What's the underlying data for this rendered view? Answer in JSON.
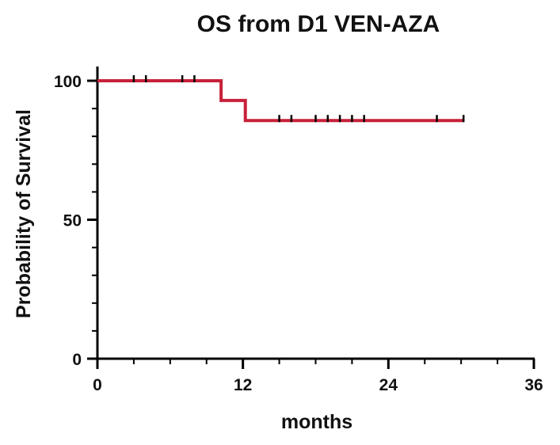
{
  "chart_data": {
    "type": "line",
    "subtype": "kaplan-meier",
    "title": "OS from D1 VEN-AZA",
    "xlabel": "months",
    "ylabel": "Probability of Survival",
    "xlim": [
      0,
      36
    ],
    "ylim": [
      0,
      100
    ],
    "x_ticks": [
      0,
      12,
      24,
      36
    ],
    "x_tick_labels": [
      "0",
      "12",
      "24",
      "36"
    ],
    "x_minor_step": 3,
    "y_ticks": [
      0,
      50,
      100
    ],
    "y_tick_labels": [
      "0",
      "50",
      "100"
    ],
    "y_minor_step": 10,
    "grid": false,
    "series": [
      {
        "color": "#c8213a",
        "steps": [
          {
            "x": 0,
            "y": 100
          },
          {
            "x": 10.2,
            "y": 92.9
          },
          {
            "x": 12.2,
            "y": 85.7
          }
        ],
        "x_end": 30.2,
        "censored": [
          {
            "x": 3.0,
            "y": 100
          },
          {
            "x": 4.0,
            "y": 100
          },
          {
            "x": 7.0,
            "y": 100
          },
          {
            "x": 8.0,
            "y": 100
          },
          {
            "x": 15.0,
            "y": 85.7
          },
          {
            "x": 16.0,
            "y": 85.7
          },
          {
            "x": 18.0,
            "y": 85.7
          },
          {
            "x": 19.0,
            "y": 85.7
          },
          {
            "x": 20.0,
            "y": 85.7
          },
          {
            "x": 21.0,
            "y": 85.7
          },
          {
            "x": 22.0,
            "y": 85.7
          },
          {
            "x": 28.0,
            "y": 85.7
          },
          {
            "x": 30.2,
            "y": 85.7
          }
        ]
      }
    ]
  }
}
